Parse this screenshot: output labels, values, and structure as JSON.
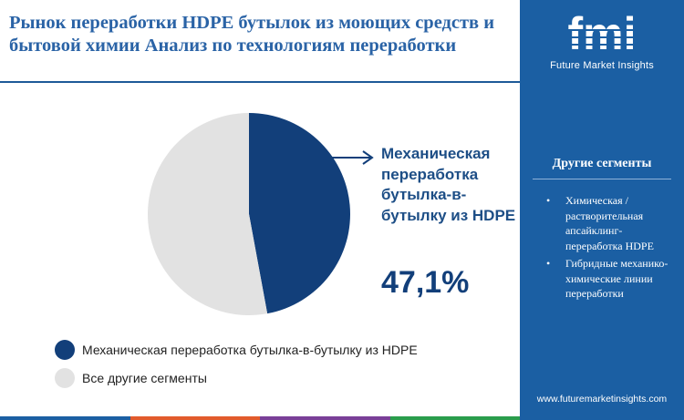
{
  "title": "Рынок переработки HDPE бутылок из моющих средств и бытовой химии Анализ по технологиям переработки",
  "chart_data": {
    "type": "pie",
    "title": "Рынок переработки HDPE бутылок из моющих средств и бытовой химии Анализ по технологиям переработки",
    "slices": [
      {
        "label": "Механическая переработка бутылка-в-бутылку из HDPE",
        "value": 47.1,
        "color": "#123f7a"
      },
      {
        "label": "Все другие сегменты",
        "value": 52.9,
        "color": "#e2e2e2"
      }
    ],
    "callout": {
      "label": "Механическая переработка бутылка-в-бутылку из HDPE",
      "value": "47,1%"
    },
    "legend_position": "bottom-left"
  },
  "legend": [
    {
      "label": "Механическая переработка бутылка-в-бутылку из HDPE",
      "color": "#123f7a"
    },
    {
      "label": "Все другие сегменты",
      "color": "#e2e2e2"
    }
  ],
  "side_panel": {
    "logo_text": "fmi",
    "logo_caption": "Future Market Insights",
    "heading": "Другие сегменты",
    "items": [
      "Химическая / растворительная апсайклинг-переработка HDPE",
      "Гибридные механико-химические линии переработки"
    ],
    "website": "www.futuremarketinsights.com",
    "color": "#1b5fa3"
  },
  "footer_colors": [
    "#1b5fa3",
    "#e25b2c",
    "#7a3f98",
    "#2a9d4c"
  ]
}
